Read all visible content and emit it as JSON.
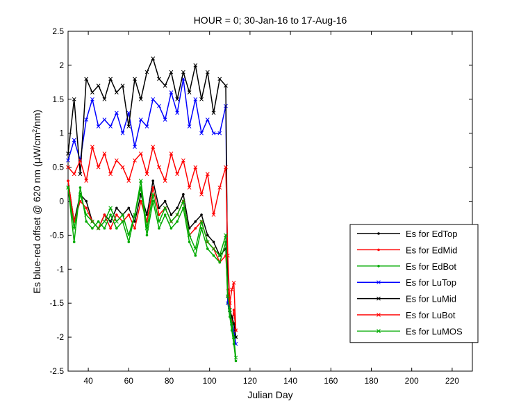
{
  "chart_data": {
    "type": "line",
    "title": "HOUR = 0; 30-Jan-16 to 17-Aug-16",
    "xlabel": "Julian Day",
    "ylabel_parts": [
      "Es blue-red offset @ 620 nm (",
      "μ",
      "W/cm",
      "2",
      "/nm)"
    ],
    "xlim": [
      30,
      230
    ],
    "ylim": [
      -2.5,
      2.5
    ],
    "x_ticks": [
      40,
      60,
      80,
      100,
      120,
      140,
      160,
      180,
      200,
      220
    ],
    "y_ticks": [
      -2.5,
      -2,
      -1.5,
      -1,
      -0.5,
      0,
      0.5,
      1,
      1.5,
      2,
      2.5
    ],
    "grid": false,
    "legend_position": "lower-right",
    "series": [
      {
        "name": "Es for EdTop",
        "color": "#000000",
        "marker": "dot",
        "x": [
          30,
          33,
          36,
          39,
          42,
          45,
          48,
          51,
          54,
          57,
          60,
          63,
          66,
          69,
          72,
          75,
          78,
          81,
          84,
          87,
          90,
          93,
          96,
          99,
          102,
          105,
          108,
          109,
          110,
          111,
          112,
          113
        ],
        "y": [
          0.3,
          -0.3,
          0.1,
          0.0,
          -0.3,
          -0.4,
          -0.2,
          -0.3,
          -0.1,
          -0.2,
          -0.1,
          -0.3,
          0.1,
          -0.2,
          0.3,
          -0.1,
          0.0,
          -0.2,
          -0.1,
          0.1,
          -0.4,
          -0.3,
          -0.2,
          -0.5,
          -0.6,
          -0.8,
          -0.7,
          -1.4,
          -1.6,
          -1.7,
          -1.8,
          -2.0
        ]
      },
      {
        "name": "Es for EdMid",
        "color": "#ff0000",
        "marker": "dot",
        "x": [
          30,
          33,
          36,
          39,
          42,
          45,
          48,
          51,
          54,
          57,
          60,
          63,
          66,
          69,
          72,
          75,
          78,
          81,
          84,
          87,
          90,
          93,
          96,
          99,
          102,
          105,
          108,
          109,
          110,
          111,
          112,
          113
        ],
        "y": [
          0.3,
          -0.3,
          0.0,
          -0.1,
          -0.3,
          -0.4,
          -0.2,
          -0.4,
          -0.2,
          -0.3,
          -0.2,
          -0.4,
          0.0,
          -0.3,
          0.2,
          -0.2,
          -0.1,
          -0.3,
          -0.2,
          0.0,
          -0.5,
          -0.4,
          -0.3,
          -0.6,
          -0.7,
          -0.9,
          -0.8,
          -1.3,
          -1.5,
          -1.8,
          -1.6,
          -1.9
        ]
      },
      {
        "name": "Es for EdBot",
        "color": "#00aa00",
        "marker": "dot",
        "x": [
          30,
          33,
          36,
          39,
          42,
          45,
          48,
          51,
          54,
          57,
          60,
          63,
          66,
          69,
          72,
          75,
          78,
          81,
          84,
          87,
          90,
          93,
          96,
          99,
          102,
          105,
          108,
          109,
          110,
          111,
          112,
          113
        ],
        "y": [
          0.2,
          -0.6,
          0.2,
          -0.3,
          -0.4,
          -0.3,
          -0.4,
          -0.2,
          -0.4,
          -0.3,
          -0.6,
          -0.2,
          0.2,
          -0.5,
          0.0,
          -0.4,
          -0.2,
          -0.4,
          -0.3,
          -0.1,
          -0.6,
          -0.8,
          -0.4,
          -0.7,
          -0.8,
          -0.9,
          -0.6,
          -1.5,
          -1.7,
          -1.9,
          -2.1,
          -2.35
        ]
      },
      {
        "name": "Es for LuTop",
        "color": "#0000ff",
        "marker": "x",
        "x": [
          30,
          33,
          36,
          39,
          42,
          45,
          48,
          51,
          54,
          57,
          60,
          63,
          66,
          69,
          72,
          75,
          78,
          81,
          84,
          87,
          90,
          93,
          96,
          99,
          102,
          105,
          108,
          109,
          110,
          111,
          112,
          113
        ],
        "y": [
          0.6,
          0.9,
          0.6,
          1.2,
          1.5,
          1.1,
          1.2,
          1.1,
          1.3,
          1.0,
          1.3,
          0.8,
          1.2,
          1.1,
          1.5,
          1.4,
          1.2,
          1.6,
          1.3,
          1.8,
          1.1,
          1.5,
          1.0,
          1.2,
          1.0,
          1.0,
          1.4,
          -1.5,
          -1.6,
          -1.8,
          -1.9,
          -2.1
        ]
      },
      {
        "name": "Es for LuMid",
        "color": "#000000",
        "marker": "x",
        "x": [
          30,
          33,
          36,
          39,
          42,
          45,
          48,
          51,
          54,
          57,
          60,
          63,
          66,
          69,
          72,
          75,
          78,
          81,
          84,
          87,
          90,
          93,
          96,
          99,
          102,
          105,
          108,
          109,
          110,
          111,
          112,
          113
        ],
        "y": [
          0.7,
          1.5,
          0.4,
          1.8,
          1.6,
          1.7,
          1.5,
          1.8,
          1.6,
          1.7,
          1.1,
          1.8,
          1.5,
          1.9,
          2.1,
          1.8,
          1.7,
          1.9,
          1.5,
          1.9,
          1.6,
          2.0,
          1.5,
          1.9,
          1.3,
          1.8,
          1.7,
          -1.4,
          -1.6,
          -1.7,
          -1.8,
          -2.0
        ]
      },
      {
        "name": "Es for LuBot",
        "color": "#ff0000",
        "marker": "x",
        "x": [
          30,
          33,
          36,
          39,
          42,
          45,
          48,
          51,
          54,
          57,
          60,
          63,
          66,
          69,
          72,
          75,
          78,
          81,
          84,
          87,
          90,
          93,
          96,
          99,
          102,
          105,
          108,
          109,
          110,
          111,
          112,
          113
        ],
        "y": [
          0.5,
          0.4,
          0.6,
          0.3,
          0.8,
          0.5,
          0.7,
          0.4,
          0.6,
          0.5,
          0.3,
          0.6,
          0.7,
          0.4,
          0.8,
          0.5,
          0.3,
          0.7,
          0.4,
          0.6,
          0.2,
          0.5,
          0.1,
          0.4,
          -0.2,
          0.2,
          0.5,
          -0.8,
          -1.5,
          -1.3,
          -1.2,
          -1.9
        ]
      },
      {
        "name": "Es for LuMOS",
        "color": "#00aa00",
        "marker": "x",
        "x": [
          30,
          33,
          36,
          39,
          42,
          45,
          48,
          51,
          54,
          57,
          60,
          63,
          66,
          69,
          72,
          75,
          78,
          81,
          84,
          87,
          90,
          93,
          96,
          99,
          102,
          105,
          108,
          109,
          110,
          111,
          112,
          113
        ],
        "y": [
          0.2,
          -0.4,
          0.1,
          -0.2,
          -0.3,
          -0.4,
          -0.3,
          -0.1,
          -0.3,
          -0.2,
          -0.5,
          -0.2,
          0.3,
          -0.4,
          0.1,
          -0.3,
          -0.1,
          -0.3,
          -0.2,
          0.0,
          -0.5,
          -0.7,
          -0.3,
          -0.6,
          -0.7,
          -0.8,
          -0.5,
          -1.4,
          -1.6,
          -1.8,
          -2.0,
          -2.3
        ]
      }
    ]
  }
}
